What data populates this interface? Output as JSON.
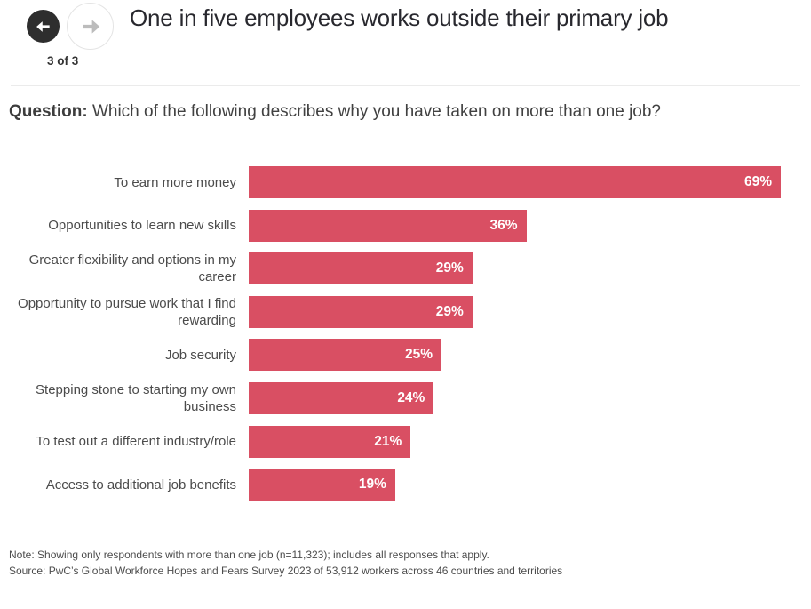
{
  "header": {
    "title": "One in five employees works outside their primary job",
    "pagination": "3 of 3",
    "back_button": "previous chart",
    "forward_button": "next chart"
  },
  "question": {
    "prefix": "Question:",
    "text": " Which of the following describes why you have taken on more than one job?"
  },
  "chart_data": {
    "type": "bar",
    "orientation": "horizontal",
    "title": "One in five employees works outside their primary job",
    "categories": [
      "To earn more money",
      "Opportunities to learn new skills",
      "Greater flexibility and options in my career",
      "Opportunity to pursue work that I find rewarding",
      "Job security",
      "Stepping stone to starting my own business",
      "To test out a different industry/role",
      "Access to additional job benefits"
    ],
    "values": [
      69,
      36,
      29,
      29,
      25,
      24,
      21,
      19
    ],
    "value_labels": [
      "69%",
      "36%",
      "29%",
      "29%",
      "25%",
      "24%",
      "21%",
      "19%"
    ],
    "value_suffix": "%",
    "xlim": [
      0,
      69
    ],
    "grid": false,
    "legend": false,
    "bar_color": "#d94f63",
    "value_label_color": "#ffffff"
  },
  "notes": {
    "note": "Note: Showing only respondents with more than one job (n=11,323); includes all responses that apply.",
    "source": "Source: PwC’s Global Workforce Hopes and Fears Survey 2023 of 53,912 workers across 46 countries and territories"
  },
  "colors": {
    "accent_rose": "#d94f63",
    "title_text": "#28282e",
    "body_text": "#4b4b4b",
    "back_button_bg": "#2e2e2e",
    "forward_arrow": "#bcbcbc",
    "divider": "#ebebeb"
  }
}
